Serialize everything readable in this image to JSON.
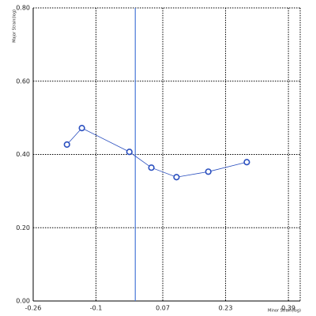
{
  "chart_data": {
    "type": "line",
    "x_label": "Minor Strain(log)",
    "y_label": "Major Strain(log)",
    "xlim": [
      -0.26,
      0.42
    ],
    "ylim": [
      0,
      0.8
    ],
    "xticks": [
      -0.26,
      -0.1,
      0.07,
      0.23,
      0.39
    ],
    "yticks": [
      {
        "value": 0,
        "label": "0.00"
      },
      {
        "value": 0.2,
        "label": "0.20"
      },
      {
        "value": 0.4,
        "label": "0.40"
      },
      {
        "value": 0.6,
        "label": "0.60"
      },
      {
        "value": 0.8,
        "label": "0.80"
      }
    ],
    "grid": true,
    "reference_x": 0,
    "reference_color": "#4a78d8",
    "x": [
      -0.174,
      -0.136,
      -0.015,
      0.041,
      0.105,
      0.186,
      0.284
    ],
    "series": [
      {
        "color": "#2a4fbf",
        "values": [
          0.427,
          0.472,
          0.407,
          0.364,
          0.338,
          0.353,
          0.379
        ]
      }
    ]
  }
}
